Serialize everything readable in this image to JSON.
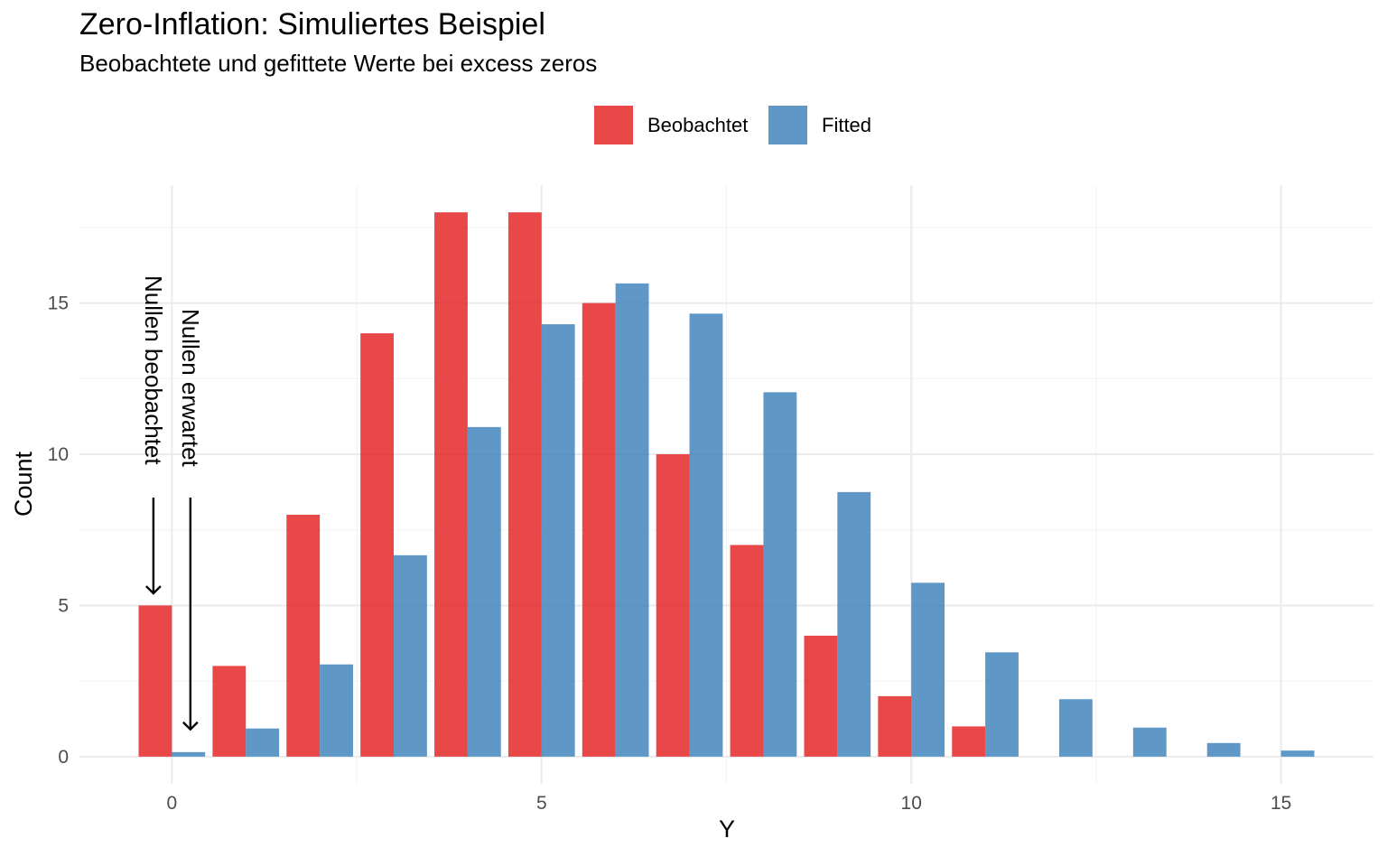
{
  "chart_data": {
    "type": "bar",
    "title": "Zero-Inflation: Simuliertes Beispiel",
    "subtitle": "Beobachtete und gefittete Werte bei excess zeros",
    "xlabel": "Y",
    "ylabel": "Count",
    "xlim": [
      -1.25,
      16.25
    ],
    "ylim": [
      -0.9,
      18.9
    ],
    "x_ticks": [
      0,
      5,
      10,
      15
    ],
    "y_ticks": [
      0,
      5,
      10,
      15
    ],
    "grid": true,
    "legend_position": "top",
    "series": [
      {
        "name": "Beobachtet",
        "color": "#E41A1C",
        "x": [
          0,
          1,
          2,
          3,
          4,
          5,
          6,
          7,
          8,
          9,
          10,
          11
        ],
        "values": [
          5,
          3,
          8,
          14,
          18,
          18,
          15,
          10,
          7,
          4,
          2,
          1
        ]
      },
      {
        "name": "Fitted",
        "color": "#377EB8",
        "x": [
          0,
          1,
          2,
          3,
          4,
          5,
          6,
          7,
          8,
          9,
          10,
          11,
          12,
          13,
          14,
          15
        ],
        "values": [
          0.15,
          0.93,
          3.05,
          6.66,
          10.9,
          14.3,
          15.65,
          14.65,
          12.05,
          8.75,
          5.75,
          3.45,
          1.9,
          0.96,
          0.45,
          0.2
        ]
      }
    ],
    "annotations": [
      {
        "text": "Nullen beobachtet",
        "arrow_to": {
          "x": -0.25,
          "y": 5.4
        }
      },
      {
        "text": "Nullen erwartet",
        "arrow_to": {
          "x": 0.25,
          "y": 0.9
        }
      }
    ]
  }
}
